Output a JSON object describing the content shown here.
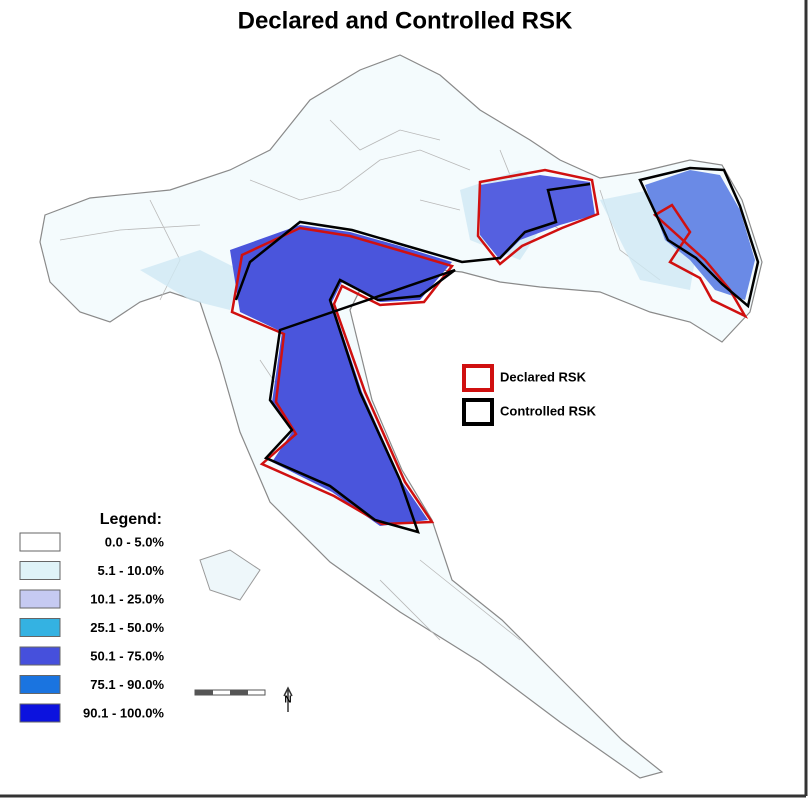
{
  "title": "Declared and Controlled RSK",
  "legend": {
    "title": "Legend:",
    "items": [
      {
        "label": "0.0 - 5.0%",
        "color": "#ffffff"
      },
      {
        "label": "5.1 - 10.0%",
        "color": "#dff3f8"
      },
      {
        "label": "10.1 - 25.0%",
        "color": "#c6caf2"
      },
      {
        "label": "25.1 - 50.0%",
        "color": "#34b2e2"
      },
      {
        "label": "50.1 - 75.0%",
        "color": "#4650dc"
      },
      {
        "label": "75.1 - 90.0%",
        "color": "#1a74e0"
      },
      {
        "label": "90.1 - 100.0%",
        "color": "#0c12de"
      }
    ]
  },
  "boundaries": [
    {
      "label": "Declared RSK",
      "color": "#d01010"
    },
    {
      "label": "Controlled RSK",
      "color": "#000000"
    }
  ],
  "north": "N"
}
